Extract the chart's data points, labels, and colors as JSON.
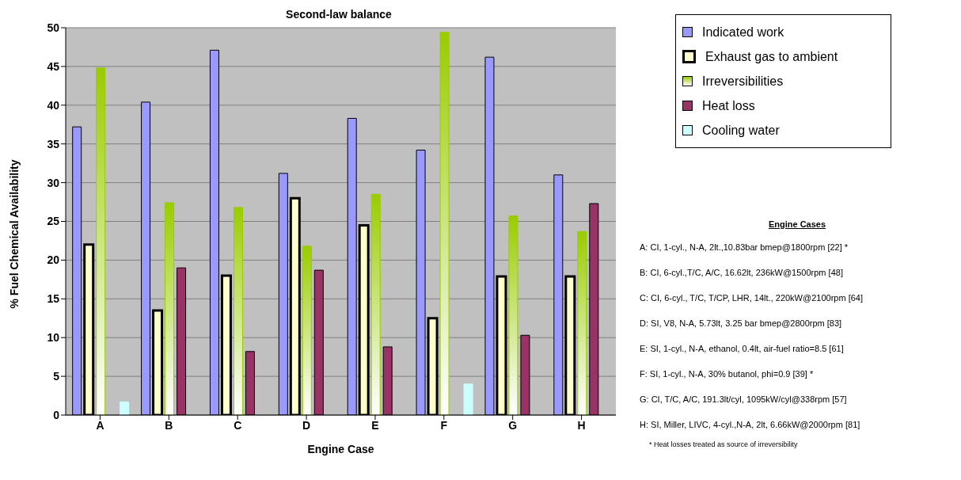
{
  "chart_data": {
    "type": "bar",
    "title": "Second-law balance",
    "xlabel": "Engine Case",
    "ylabel": "% Fuel Chemical Availability",
    "categories": [
      "A",
      "B",
      "C",
      "D",
      "E",
      "F",
      "G",
      "H"
    ],
    "series": [
      {
        "name": "Indicated work",
        "color": "#9999ff",
        "values": [
          37.2,
          40.4,
          47.1,
          31.2,
          38.3,
          34.2,
          46.2,
          31.0
        ]
      },
      {
        "name": "Exhaust gas to ambient",
        "color": "#ffffcc",
        "values": [
          22.0,
          13.5,
          18.0,
          28.0,
          24.5,
          12.5,
          17.9,
          17.9
        ]
      },
      {
        "name": "Irreversibilities",
        "color": "#99cc00",
        "values": [
          44.8,
          27.4,
          26.8,
          21.8,
          28.5,
          49.4,
          25.7,
          23.7
        ]
      },
      {
        "name": "Heat loss",
        "color": "#993366",
        "values": [
          null,
          19.0,
          8.2,
          18.7,
          8.8,
          null,
          10.3,
          27.3
        ]
      },
      {
        "name": "Cooling water",
        "color": "#ccffff",
        "values": [
          1.7,
          null,
          null,
          null,
          null,
          4.0,
          null,
          null
        ]
      }
    ],
    "ylim": [
      0,
      50
    ],
    "yticks": [
      0,
      5,
      10,
      15,
      20,
      25,
      30,
      35,
      40,
      45,
      50
    ],
    "grid": "y",
    "legend": "top right",
    "annotations": [
      "Engine Cases",
      "A: CI, 1-cyl., N-A, 2lt.,10.83bar bmep@1800rpm [22] *",
      "B: CI, 6-cyl.,T/C, A/C, 16.62lt, 236kW@1500rpm [48]",
      "C: CI, 6-cyl., T/C, T/CP, LHR, 14lt., 220kW@2100rpm [64]",
      "D: SI, V8, N-A, 5.73lt, 3.25 bar bmep@2800rpm [83]",
      "E: SI, 1-cyl., N-A, ethanol, 0.4lt, air-fuel ratio=8.5 [61]",
      "F: SI, 1-cyl., N-A, 30% butanol, phi=0.9 [39] *",
      "G: CI, T/C, A/C, 191.3lt/cyl, 1095kW/cyl@338rpm [57]",
      "H: SI, Miller, LIVC, 4-cyl.,N-A, 2lt, 6.66kW@2000rpm [81]",
      "* Heat losses treated as source of irreversibility"
    ]
  }
}
